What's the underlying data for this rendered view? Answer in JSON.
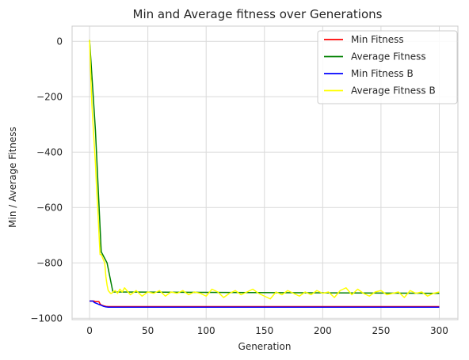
{
  "chart_data": {
    "type": "line",
    "title": "Min and Average fitness over Generations",
    "xlabel": "Generation",
    "ylabel": "Min / Average Fitness",
    "xlim": [
      -15,
      316
    ],
    "ylim": [
      -1005,
      55
    ],
    "xticks": [
      0,
      50,
      100,
      150,
      200,
      250,
      300
    ],
    "yticks": [
      0,
      -200,
      -400,
      -600,
      -800,
      -1000
    ],
    "grid": true,
    "legend_position": "top-right",
    "series": [
      {
        "name": "Min Fitness",
        "color": "#ff0000",
        "x": [
          0,
          4,
          5,
          8,
          9,
          10,
          12,
          14,
          16,
          300
        ],
        "y": [
          -938,
          -938,
          -940,
          -940,
          -948,
          -952,
          -955,
          -957,
          -958,
          -958
        ]
      },
      {
        "name": "Average Fitness",
        "color": "#008000",
        "x": [
          0,
          5,
          10,
          15,
          20,
          300
        ],
        "y": [
          5,
          -320,
          -760,
          -800,
          -905,
          -910
        ]
      },
      {
        "name": "Min Fitness B",
        "color": "#0000ff",
        "x": [
          0,
          3,
          4,
          7,
          8,
          10,
          12,
          14,
          16,
          300
        ],
        "y": [
          -938,
          -938,
          -943,
          -948,
          -950,
          -953,
          -957,
          -959,
          -960,
          -960
        ]
      },
      {
        "name": "Average Fitness B",
        "color": "#ffff00",
        "x": [
          0,
          1,
          2,
          3,
          4,
          5,
          6,
          7,
          8,
          9,
          10,
          11,
          12,
          13,
          14,
          15,
          16,
          17,
          18,
          19,
          20,
          22,
          24,
          26,
          28,
          30,
          35,
          40,
          45,
          50,
          55,
          60,
          65,
          70,
          75,
          80,
          85,
          90,
          95,
          100,
          105,
          110,
          115,
          120,
          125,
          130,
          135,
          140,
          145,
          150,
          155,
          160,
          165,
          170,
          175,
          180,
          185,
          190,
          195,
          200,
          205,
          210,
          215,
          220,
          225,
          230,
          235,
          240,
          245,
          250,
          255,
          260,
          265,
          270,
          275,
          280,
          285,
          290,
          295,
          300
        ],
        "y": [
          5,
          -120,
          -230,
          -300,
          -370,
          -440,
          -530,
          -600,
          -690,
          -770,
          -770,
          -780,
          -790,
          -800,
          -850,
          -880,
          -900,
          -905,
          -910,
          -910,
          -905,
          -900,
          -910,
          -895,
          -905,
          -890,
          -915,
          -900,
          -920,
          -905,
          -910,
          -900,
          -920,
          -905,
          -910,
          -900,
          -915,
          -905,
          -910,
          -920,
          -895,
          -905,
          -925,
          -910,
          -900,
          -915,
          -905,
          -895,
          -910,
          -920,
          -930,
          -905,
          -915,
          -900,
          -910,
          -920,
          -905,
          -915,
          -900,
          -910,
          -905,
          -925,
          -900,
          -890,
          -915,
          -895,
          -910,
          -920,
          -905,
          -900,
          -915,
          -910,
          -905,
          -925,
          -900,
          -910,
          -905,
          -920,
          -910,
          -905
        ]
      }
    ]
  }
}
